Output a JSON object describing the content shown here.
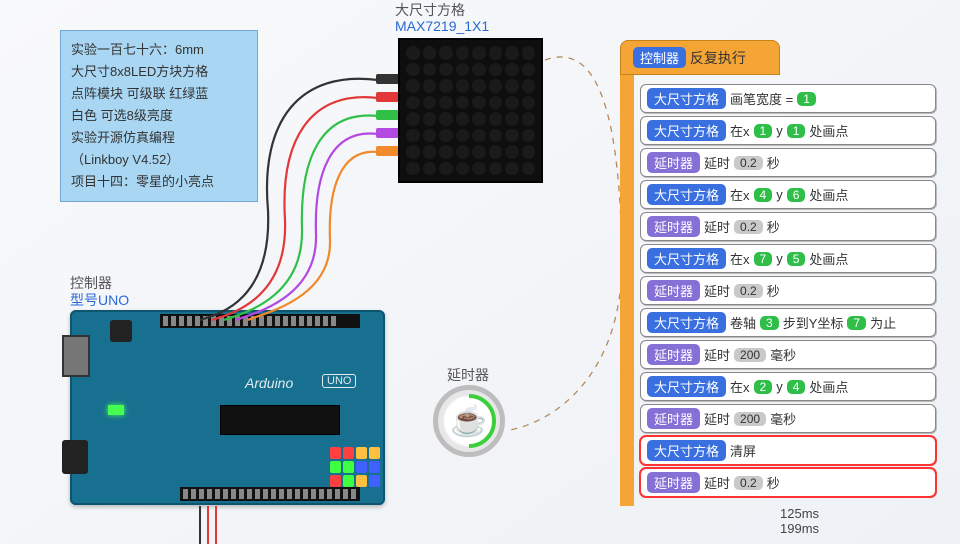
{
  "top": {
    "label": "大尺寸方格",
    "link": "MAX7219_1X1"
  },
  "note": {
    "lines": [
      "实验一百七十六：6mm",
      "大尺寸8x8LED方块方格",
      "点阵模块 可级联 红绿蓝",
      "白色 可选8级亮度",
      "实验开源仿真编程",
      "（Linkboy V4.52）",
      "项目十四：零星的小亮点"
    ]
  },
  "controller": {
    "label": "控制器",
    "link": "型号UNO"
  },
  "board": {
    "logo": "Arduino",
    "model": "UNO"
  },
  "timer": {
    "label": "延时器",
    "icon": "☕"
  },
  "wires": {
    "colors": {
      "black": "#333333",
      "red": "#e23838",
      "green": "#30c048",
      "purple": "#b348e2",
      "orange": "#f08a2a"
    }
  },
  "matrix": {
    "rows": 8,
    "cols": 8,
    "bg": "#0e0e0e"
  },
  "smallgrid_colors": [
    "#ff4040",
    "#ff4040",
    "#ffc040",
    "#ffc040",
    "#40ff40",
    "#40ff40",
    "#4060ff",
    "#4060ff",
    "#ff4040",
    "#40ff40",
    "#ffc040",
    "#4060ff"
  ],
  "panel": {
    "hat": {
      "obj": "控制器",
      "event": "反复执行"
    },
    "blocks": [
      {
        "type": "obj",
        "obj": "大尺寸方格",
        "text": "画笔宽度 =",
        "args": [
          {
            "v": "1",
            "c": "num"
          }
        ]
      },
      {
        "type": "obj",
        "obj": "大尺寸方格",
        "text": "在x",
        "args": [
          {
            "v": "1",
            "c": "num"
          }
        ],
        "text2": "y",
        "args2": [
          {
            "v": "1",
            "c": "num"
          }
        ],
        "text3": "处画点"
      },
      {
        "type": "delay",
        "obj": "延时器",
        "text": "延时",
        "args": [
          {
            "v": "0.2",
            "c": "gray"
          }
        ],
        "text2": "秒"
      },
      {
        "type": "obj",
        "obj": "大尺寸方格",
        "text": "在x",
        "args": [
          {
            "v": "4",
            "c": "num"
          }
        ],
        "text2": "y",
        "args2": [
          {
            "v": "6",
            "c": "num"
          }
        ],
        "text3": "处画点"
      },
      {
        "type": "delay",
        "obj": "延时器",
        "text": "延时",
        "args": [
          {
            "v": "0.2",
            "c": "gray"
          }
        ],
        "text2": "秒"
      },
      {
        "type": "obj",
        "obj": "大尺寸方格",
        "text": "在x",
        "args": [
          {
            "v": "7",
            "c": "num"
          }
        ],
        "text2": "y",
        "args2": [
          {
            "v": "5",
            "c": "num"
          }
        ],
        "text3": "处画点"
      },
      {
        "type": "delay",
        "obj": "延时器",
        "text": "延时",
        "args": [
          {
            "v": "0.2",
            "c": "gray"
          }
        ],
        "text2": "秒"
      },
      {
        "type": "obj",
        "obj": "大尺寸方格",
        "text": "卷轴",
        "args": [
          {
            "v": "3",
            "c": "num"
          }
        ],
        "text2": "步到Y坐标",
        "args2": [
          {
            "v": "7",
            "c": "num"
          }
        ],
        "text3": "为止"
      },
      {
        "type": "delay",
        "obj": "延时器",
        "text": "延时",
        "args": [
          {
            "v": "200",
            "c": "gray"
          }
        ],
        "text2": "毫秒"
      },
      {
        "type": "obj",
        "obj": "大尺寸方格",
        "text": "在x",
        "args": [
          {
            "v": "2",
            "c": "num"
          }
        ],
        "text2": "y",
        "args2": [
          {
            "v": "4",
            "c": "num"
          }
        ],
        "text3": "处画点"
      },
      {
        "type": "delay",
        "obj": "延时器",
        "text": "延时",
        "args": [
          {
            "v": "200",
            "c": "gray"
          }
        ],
        "text2": "毫秒"
      },
      {
        "type": "obj",
        "obj": "大尺寸方格",
        "text": "清屏",
        "highlight": true
      },
      {
        "type": "delay",
        "obj": "延时器",
        "text": "延时",
        "args": [
          {
            "v": "0.2",
            "c": "gray"
          }
        ],
        "text2": "秒",
        "highlight": true
      }
    ],
    "timing": {
      "l1": "125ms",
      "l2": "199ms"
    }
  }
}
